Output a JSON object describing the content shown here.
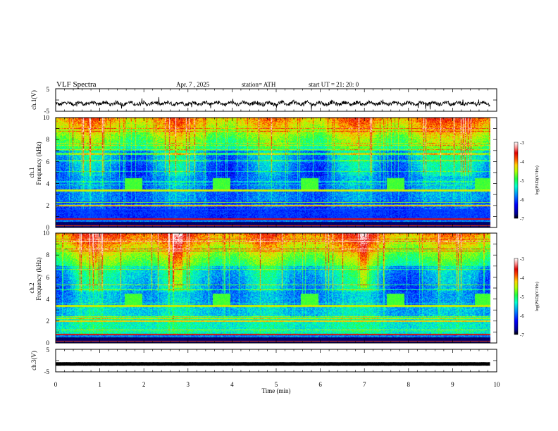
{
  "header": {
    "title": "VLF  Spectra",
    "date": "Apr. 7  , 2025",
    "station": "station= ATH",
    "start": "start  UT  =    21: 20: 0"
  },
  "chart_data": [
    {
      "id": "ch1-waveform",
      "type": "line",
      "ylabel": "ch.1(V)",
      "ylim": [
        -5,
        5
      ],
      "yticks": [
        "5",
        "-5"
      ],
      "xlim": [
        0,
        10
      ],
      "baseline": -1.5,
      "line_color": "#000000"
    },
    {
      "id": "ch1-spectrogram",
      "type": "heatmap",
      "ylabel": "ch.1\nFrequency (kHz)",
      "ylabel_lines": [
        "ch.1",
        "Frequency  (kHz)"
      ],
      "ylim": [
        0,
        10
      ],
      "yticks": [
        "0",
        "2",
        "4",
        "6",
        "8",
        "10"
      ],
      "xlim": [
        0,
        10
      ],
      "data_end_min": 9.85,
      "colorbar": {
        "label": "log(PSD)(V²/Hz)",
        "range": [
          -7,
          -3
        ],
        "ticks": [
          "-3",
          "-4",
          "-5",
          "-6",
          "-7"
        ]
      },
      "tone_bursts": [
        {
          "t_start": 1.55,
          "t_end": 1.95,
          "f_low": 3.5,
          "f_high": 4.5
        },
        {
          "t_start": 3.55,
          "t_end": 3.95,
          "f_low": 3.5,
          "f_high": 4.5
        },
        {
          "t_start": 5.55,
          "t_end": 5.95,
          "f_low": 3.5,
          "f_high": 4.5
        },
        {
          "t_start": 7.5,
          "t_end": 7.9,
          "f_low": 3.5,
          "f_high": 4.5
        },
        {
          "t_start": 9.5,
          "t_end": 9.85,
          "f_low": 3.5,
          "f_high": 4.5
        }
      ]
    },
    {
      "id": "ch2-spectrogram",
      "type": "heatmap",
      "ylabel": "ch.2\nFrequency (kHz)",
      "ylabel_lines": [
        "ch.2",
        "Frequency  (kHz)"
      ],
      "ylim": [
        0,
        10
      ],
      "yticks": [
        "0",
        "2",
        "4",
        "6",
        "8",
        "10"
      ],
      "xlim": [
        0,
        10
      ],
      "data_end_min": 9.85,
      "colorbar": {
        "label": "log(PSD)(V²/Hz)",
        "range": [
          -7,
          -3
        ],
        "ticks": [
          "-3",
          "-4",
          "-5",
          "-6",
          "-7"
        ]
      },
      "tone_bursts": [
        {
          "t_start": 1.55,
          "t_end": 1.95,
          "f_low": 3.5,
          "f_high": 4.5
        },
        {
          "t_start": 3.55,
          "t_end": 3.95,
          "f_low": 3.5,
          "f_high": 4.5
        },
        {
          "t_start": 5.55,
          "t_end": 5.95,
          "f_low": 3.5,
          "f_high": 4.5
        },
        {
          "t_start": 7.5,
          "t_end": 7.9,
          "f_low": 3.5,
          "f_high": 4.5
        },
        {
          "t_start": 9.5,
          "t_end": 9.85,
          "f_low": 3.5,
          "f_high": 4.5
        }
      ]
    },
    {
      "id": "ch3-waveform",
      "type": "line",
      "ylabel": "ch.3(V)",
      "ylim": [
        -5,
        5
      ],
      "yticks": [
        "5",
        "-5"
      ],
      "xlim": [
        0,
        10
      ],
      "baseline": -1.5,
      "xlabel": "Time  (min)",
      "xticks": [
        "0",
        "1",
        "2",
        "3",
        "4",
        "5",
        "6",
        "7",
        "8",
        "9",
        "10"
      ],
      "line_color": "#000000"
    }
  ],
  "colormap": [
    "#000090",
    "#0000ff",
    "#0070ff",
    "#00e0ff",
    "#00ff90",
    "#60ff00",
    "#e0ff00",
    "#ffb000",
    "#ff3000",
    "#e00000",
    "#ffd0d0",
    "#ffffff"
  ]
}
